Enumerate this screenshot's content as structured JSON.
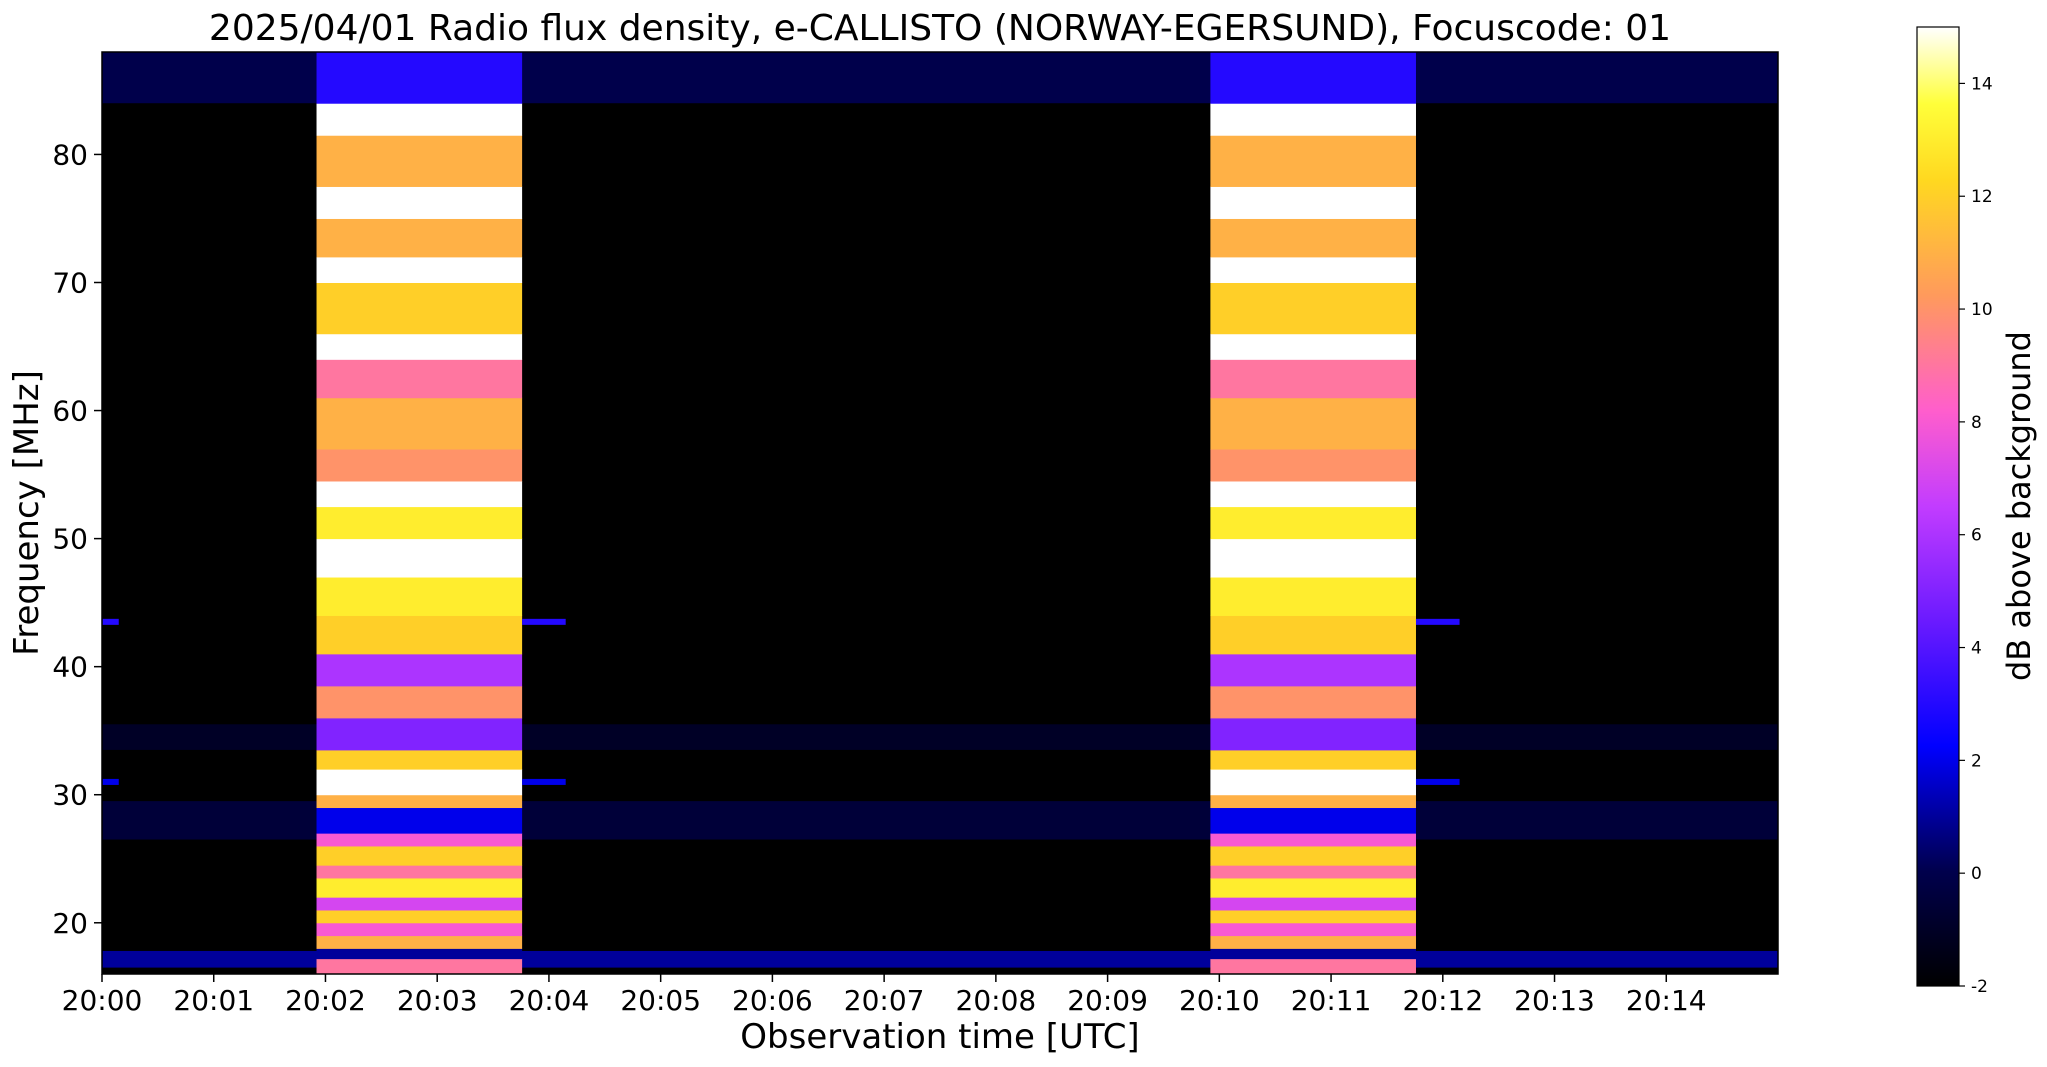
{
  "chart_data": {
    "type": "heatmap",
    "title": "2025/04/01  Radio flux density, e-CALLISTO (NORWAY-EGERSUND), Focuscode: 01",
    "xlabel": "Observation time [UTC]",
    "ylabel": "Frequency [MHz]",
    "colorbar_label": "dB above background",
    "x_unit": "minutes after 20:00 UTC",
    "xlim": [
      0,
      15
    ],
    "ylim": [
      16,
      88
    ],
    "clim": [
      -2,
      15
    ],
    "x_ticks": [
      {
        "value": 0,
        "label": "20:00"
      },
      {
        "value": 1,
        "label": "20:01"
      },
      {
        "value": 2,
        "label": "20:02"
      },
      {
        "value": 3,
        "label": "20:03"
      },
      {
        "value": 4,
        "label": "20:04"
      },
      {
        "value": 5,
        "label": "20:05"
      },
      {
        "value": 6,
        "label": "20:06"
      },
      {
        "value": 7,
        "label": "20:07"
      },
      {
        "value": 8,
        "label": "20:08"
      },
      {
        "value": 9,
        "label": "20:09"
      },
      {
        "value": 10,
        "label": "20:10"
      },
      {
        "value": 11,
        "label": "20:11"
      },
      {
        "value": 12,
        "label": "20:12"
      },
      {
        "value": 13,
        "label": "20:13"
      },
      {
        "value": 14,
        "label": "20:14"
      }
    ],
    "y_ticks": [
      20,
      30,
      40,
      50,
      60,
      70,
      80
    ],
    "colorbar_ticks": [
      -2,
      0,
      2,
      4,
      6,
      8,
      10,
      12,
      14
    ],
    "colormap": "gnuplot2",
    "colormap_stops": [
      {
        "pos": 0.0,
        "color": "#000000"
      },
      {
        "pos": 0.12,
        "color": "#00004d"
      },
      {
        "pos": 0.25,
        "color": "#0000ff"
      },
      {
        "pos": 0.38,
        "color": "#6a1aff"
      },
      {
        "pos": 0.5,
        "color": "#c23cff"
      },
      {
        "pos": 0.6,
        "color": "#ff5ecc"
      },
      {
        "pos": 0.72,
        "color": "#ff9a5c"
      },
      {
        "pos": 0.84,
        "color": "#ffd820"
      },
      {
        "pos": 0.92,
        "color": "#ffff3a"
      },
      {
        "pos": 1.0,
        "color": "#ffffff"
      }
    ],
    "background_level_db": -2,
    "bursts": [
      {
        "t_start": 1.92,
        "t_end": 3.76
      },
      {
        "t_start": 9.92,
        "t_end": 11.76
      }
    ],
    "burst_band_levels_db": [
      {
        "f_from": 16,
        "f_to": 17.2,
        "db": 9
      },
      {
        "f_from": 17.2,
        "f_to": 18,
        "db": 1
      },
      {
        "f_from": 18,
        "f_to": 19,
        "db": 11
      },
      {
        "f_from": 19,
        "f_to": 20,
        "db": 8
      },
      {
        "f_from": 20,
        "f_to": 21,
        "db": 12
      },
      {
        "f_from": 21,
        "f_to": 22,
        "db": 7
      },
      {
        "f_from": 22,
        "f_to": 23.5,
        "db": 13
      },
      {
        "f_from": 23.5,
        "f_to": 24.5,
        "db": 9
      },
      {
        "f_from": 24.5,
        "f_to": 26,
        "db": 12
      },
      {
        "f_from": 26,
        "f_to": 27,
        "db": 8
      },
      {
        "f_from": 27,
        "f_to": 29,
        "db": 2
      },
      {
        "f_from": 29,
        "f_to": 30,
        "db": 11
      },
      {
        "f_from": 30,
        "f_to": 32,
        "db": 15
      },
      {
        "f_from": 32,
        "f_to": 33.5,
        "db": 12
      },
      {
        "f_from": 33.5,
        "f_to": 36,
        "db": 5
      },
      {
        "f_from": 36,
        "f_to": 38.5,
        "db": 10
      },
      {
        "f_from": 38.5,
        "f_to": 41,
        "db": 6
      },
      {
        "f_from": 41,
        "f_to": 44,
        "db": 12
      },
      {
        "f_from": 44,
        "f_to": 47,
        "db": 13
      },
      {
        "f_from": 47,
        "f_to": 50,
        "db": 15
      },
      {
        "f_from": 50,
        "f_to": 52.5,
        "db": 13
      },
      {
        "f_from": 52.5,
        "f_to": 54.5,
        "db": 15
      },
      {
        "f_from": 54.5,
        "f_to": 57,
        "db": 10
      },
      {
        "f_from": 57,
        "f_to": 61,
        "db": 11
      },
      {
        "f_from": 61,
        "f_to": 64,
        "db": 9
      },
      {
        "f_from": 64,
        "f_to": 66,
        "db": 15
      },
      {
        "f_from": 66,
        "f_to": 70,
        "db": 12
      },
      {
        "f_from": 70,
        "f_to": 72,
        "db": 15
      },
      {
        "f_from": 72,
        "f_to": 75,
        "db": 11
      },
      {
        "f_from": 75,
        "f_to": 77.5,
        "db": 15
      },
      {
        "f_from": 77.5,
        "f_to": 81.5,
        "db": 11
      },
      {
        "f_from": 81.5,
        "f_to": 84,
        "db": 15
      },
      {
        "f_from": 84,
        "f_to": 88,
        "db": 3
      }
    ],
    "quiet_band_levels_db": [
      {
        "f_from": 16.5,
        "f_to": 17.8,
        "db": 1
      },
      {
        "f_from": 26.5,
        "f_to": 29.5,
        "db": -0.5
      },
      {
        "f_from": 33.5,
        "f_to": 35.5,
        "db": -1
      },
      {
        "f_from": 84,
        "f_to": 88,
        "db": 0
      }
    ],
    "interference_lines": [
      {
        "freq": 43.5,
        "t_start": 0.0,
        "t_end": 0.15,
        "db": 3
      },
      {
        "freq": 43.5,
        "t_start": 3.76,
        "t_end": 4.15,
        "db": 3
      },
      {
        "freq": 43.5,
        "t_start": 11.76,
        "t_end": 12.15,
        "db": 3
      },
      {
        "freq": 31,
        "t_start": 0.0,
        "t_end": 0.15,
        "db": 2
      },
      {
        "freq": 31,
        "t_start": 3.76,
        "t_end": 4.15,
        "db": 2
      },
      {
        "freq": 31,
        "t_start": 11.76,
        "t_end": 12.15,
        "db": 2
      }
    ]
  }
}
